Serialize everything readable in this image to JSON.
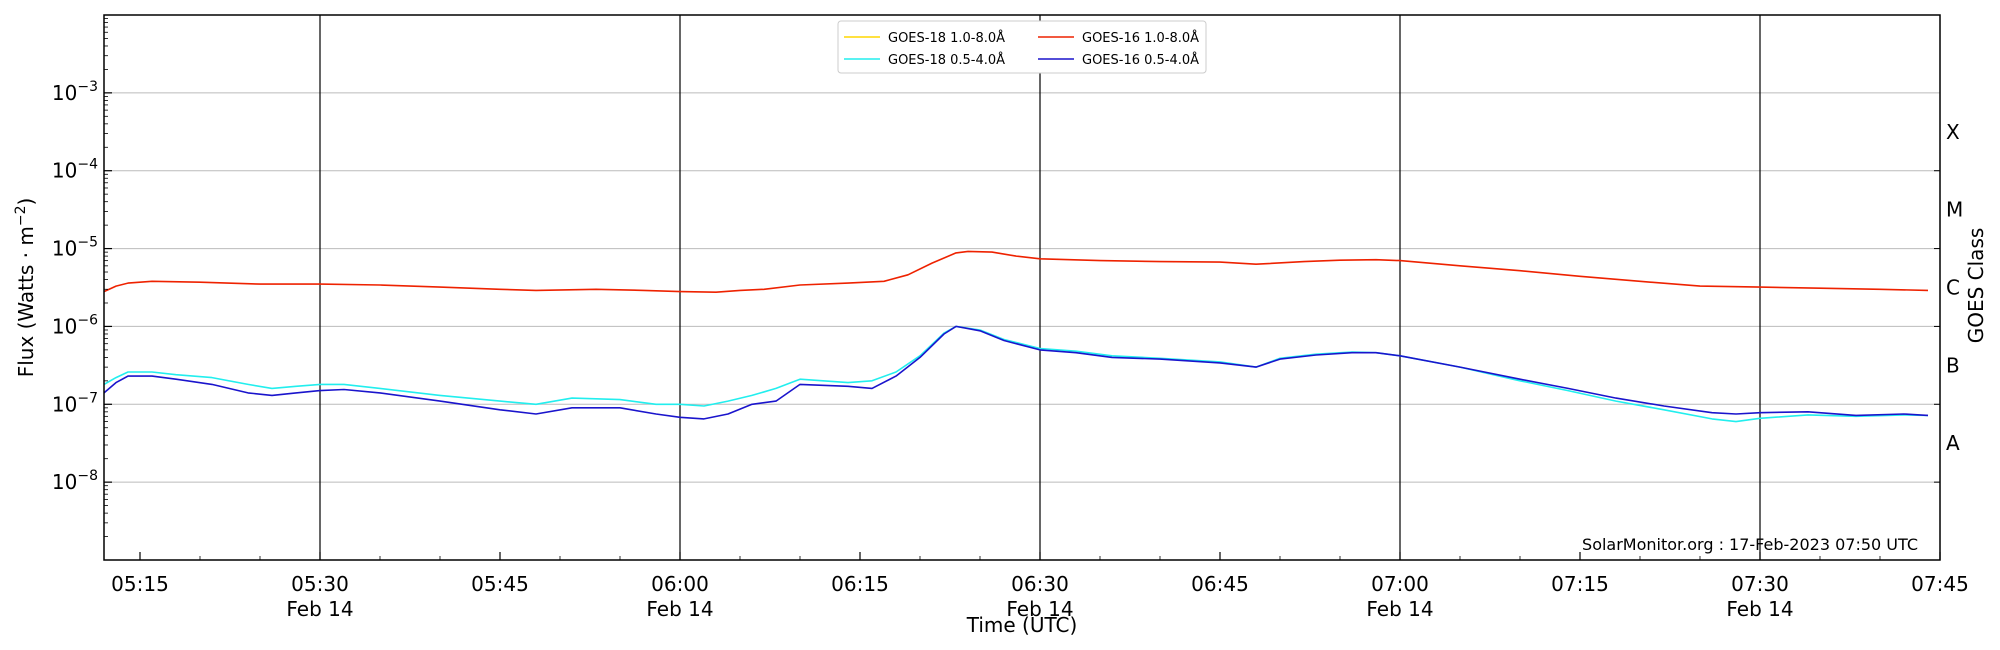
{
  "chart_data": {
    "type": "line",
    "xlabel": "Time (UTC)",
    "ylabel": "Flux (Watts · m",
    "ylabel_sup": "−2",
    "ylabel_close": ")",
    "right_label": "GOES Class",
    "y_scale": "log",
    "ylim": [
      1e-09,
      0.01
    ],
    "xlim": [
      "05:12",
      "07:45"
    ],
    "grid": "horizontal at decades; vertical lines every 30 min",
    "legend_placement": "top-center",
    "y_ticks": [
      {
        "exp": -8,
        "base": "10",
        "pow": "−8"
      },
      {
        "exp": -7,
        "base": "10",
        "pow": "−7"
      },
      {
        "exp": -6,
        "base": "10",
        "pow": "−6"
      },
      {
        "exp": -5,
        "base": "10",
        "pow": "−5"
      },
      {
        "exp": -4,
        "base": "10",
        "pow": "−4"
      },
      {
        "exp": -3,
        "base": "10",
        "pow": "−3"
      }
    ],
    "x_ticks": [
      {
        "t": "05:15",
        "label": "05:15",
        "sub": ""
      },
      {
        "t": "05:30",
        "label": "05:30",
        "sub": "Feb 14"
      },
      {
        "t": "05:45",
        "label": "05:45",
        "sub": ""
      },
      {
        "t": "06:00",
        "label": "06:00",
        "sub": "Feb 14"
      },
      {
        "t": "06:15",
        "label": "06:15",
        "sub": ""
      },
      {
        "t": "06:30",
        "label": "06:30",
        "sub": "Feb 14"
      },
      {
        "t": "06:45",
        "label": "06:45",
        "sub": ""
      },
      {
        "t": "07:00",
        "label": "07:00",
        "sub": "Feb 14"
      },
      {
        "t": "07:15",
        "label": "07:15",
        "sub": ""
      },
      {
        "t": "07:30",
        "label": "07:30",
        "sub": "Feb 14"
      },
      {
        "t": "07:45",
        "label": "07:45",
        "sub": ""
      }
    ],
    "vertical_lines": [
      "05:30",
      "06:00",
      "06:30",
      "07:00",
      "07:30"
    ],
    "goes_classes": [
      {
        "label": "A",
        "exp": -7.5
      },
      {
        "label": "B",
        "exp": -6.5
      },
      {
        "label": "C",
        "exp": -5.5
      },
      {
        "label": "M",
        "exp": -4.5
      },
      {
        "label": "X",
        "exp": -3.5
      }
    ],
    "legend": [
      {
        "name": "GOES-18 1.0-8.0Å",
        "color": "#ffd700"
      },
      {
        "name": "GOES-18 0.5-4.0Å",
        "color": "#22eeee"
      },
      {
        "name": "GOES-16 1.0-8.0Å",
        "color": "#ee2200"
      },
      {
        "name": "GOES-16 0.5-4.0Å",
        "color": "#1a14cc"
      }
    ],
    "series": [
      {
        "name": "GOES-16 1.0-8.0Å",
        "color": "#ee2200",
        "points": [
          [
            "05:12",
            2.8e-06
          ],
          [
            "05:13",
            3.3e-06
          ],
          [
            "05:14",
            3.6e-06
          ],
          [
            "05:16",
            3.8e-06
          ],
          [
            "05:20",
            3.7e-06
          ],
          [
            "05:25",
            3.5e-06
          ],
          [
            "05:30",
            3.5e-06
          ],
          [
            "05:35",
            3.4e-06
          ],
          [
            "05:40",
            3.2e-06
          ],
          [
            "05:45",
            3e-06
          ],
          [
            "05:48",
            2.9e-06
          ],
          [
            "05:53",
            3e-06
          ],
          [
            "05:57",
            2.9e-06
          ],
          [
            "06:00",
            2.8e-06
          ],
          [
            "06:03",
            2.75e-06
          ],
          [
            "06:05",
            2.9e-06
          ],
          [
            "06:07",
            3e-06
          ],
          [
            "06:10",
            3.4e-06
          ],
          [
            "06:14",
            3.6e-06
          ],
          [
            "06:17",
            3.8e-06
          ],
          [
            "06:19",
            4.6e-06
          ],
          [
            "06:21",
            6.5e-06
          ],
          [
            "06:23",
            8.8e-06
          ],
          [
            "06:24",
            9.2e-06
          ],
          [
            "06:26",
            9e-06
          ],
          [
            "06:28",
            8e-06
          ],
          [
            "06:30",
            7.4e-06
          ],
          [
            "06:35",
            7e-06
          ],
          [
            "06:40",
            6.8e-06
          ],
          [
            "06:45",
            6.7e-06
          ],
          [
            "06:48",
            6.3e-06
          ],
          [
            "06:52",
            6.8e-06
          ],
          [
            "06:55",
            7.1e-06
          ],
          [
            "06:58",
            7.2e-06
          ],
          [
            "07:00",
            7e-06
          ],
          [
            "07:05",
            6e-06
          ],
          [
            "07:10",
            5.2e-06
          ],
          [
            "07:15",
            4.4e-06
          ],
          [
            "07:20",
            3.8e-06
          ],
          [
            "07:25",
            3.3e-06
          ],
          [
            "07:30",
            3.2e-06
          ],
          [
            "07:35",
            3.1e-06
          ],
          [
            "07:40",
            3e-06
          ],
          [
            "07:44",
            2.9e-06
          ]
        ]
      },
      {
        "name": "GOES-18 0.5-4.0Å",
        "color": "#22eeee",
        "points": [
          [
            "05:12",
            1.8e-07
          ],
          [
            "05:13",
            2.2e-07
          ],
          [
            "05:14",
            2.6e-07
          ],
          [
            "05:16",
            2.6e-07
          ],
          [
            "05:18",
            2.4e-07
          ],
          [
            "05:21",
            2.2e-07
          ],
          [
            "05:24",
            1.8e-07
          ],
          [
            "05:26",
            1.6e-07
          ],
          [
            "05:28",
            1.7e-07
          ],
          [
            "05:30",
            1.8e-07
          ],
          [
            "05:32",
            1.8e-07
          ],
          [
            "05:35",
            1.6e-07
          ],
          [
            "05:40",
            1.3e-07
          ],
          [
            "05:45",
            1.1e-07
          ],
          [
            "05:48",
            1e-07
          ],
          [
            "05:51",
            1.2e-07
          ],
          [
            "05:55",
            1.15e-07
          ],
          [
            "05:58",
            1e-07
          ],
          [
            "06:00",
            1e-07
          ],
          [
            "06:02",
            9.5e-08
          ],
          [
            "06:04",
            1.1e-07
          ],
          [
            "06:06",
            1.3e-07
          ],
          [
            "06:08",
            1.6e-07
          ],
          [
            "06:10",
            2.1e-07
          ],
          [
            "06:14",
            1.9e-07
          ],
          [
            "06:16",
            2e-07
          ],
          [
            "06:18",
            2.6e-07
          ],
          [
            "06:20",
            4.2e-07
          ],
          [
            "06:22",
            8.2e-07
          ],
          [
            "06:23",
            1e-06
          ],
          [
            "06:25",
            9e-07
          ],
          [
            "06:27",
            6.8e-07
          ],
          [
            "06:30",
            5.2e-07
          ],
          [
            "06:33",
            4.8e-07
          ],
          [
            "06:36",
            4.2e-07
          ],
          [
            "06:40",
            3.9e-07
          ],
          [
            "06:45",
            3.5e-07
          ],
          [
            "06:48",
            3e-07
          ],
          [
            "06:50",
            3.9e-07
          ],
          [
            "06:53",
            4.4e-07
          ],
          [
            "06:56",
            4.7e-07
          ],
          [
            "06:58",
            4.6e-07
          ],
          [
            "07:00",
            4.2e-07
          ],
          [
            "07:05",
            3e-07
          ],
          [
            "07:10",
            2e-07
          ],
          [
            "07:14",
            1.5e-07
          ],
          [
            "07:18",
            1.1e-07
          ],
          [
            "07:22",
            8.5e-08
          ],
          [
            "07:26",
            6.5e-08
          ],
          [
            "07:28",
            6e-08
          ],
          [
            "07:30",
            6.6e-08
          ],
          [
            "07:34",
            7.3e-08
          ],
          [
            "07:38",
            7e-08
          ],
          [
            "07:42",
            7.3e-08
          ],
          [
            "07:44",
            7.2e-08
          ]
        ]
      },
      {
        "name": "GOES-16 0.5-4.0Å",
        "color": "#1a14cc",
        "points": [
          [
            "05:12",
            1.4e-07
          ],
          [
            "05:13",
            1.9e-07
          ],
          [
            "05:14",
            2.3e-07
          ],
          [
            "05:16",
            2.3e-07
          ],
          [
            "05:18",
            2.1e-07
          ],
          [
            "05:21",
            1.8e-07
          ],
          [
            "05:24",
            1.4e-07
          ],
          [
            "05:26",
            1.3e-07
          ],
          [
            "05:28",
            1.4e-07
          ],
          [
            "05:30",
            1.5e-07
          ],
          [
            "05:32",
            1.55e-07
          ],
          [
            "05:35",
            1.4e-07
          ],
          [
            "05:40",
            1.1e-07
          ],
          [
            "05:45",
            8.5e-08
          ],
          [
            "05:48",
            7.5e-08
          ],
          [
            "05:51",
            9e-08
          ],
          [
            "05:55",
            9e-08
          ],
          [
            "05:58",
            7.5e-08
          ],
          [
            "06:00",
            6.8e-08
          ],
          [
            "06:02",
            6.5e-08
          ],
          [
            "06:04",
            7.5e-08
          ],
          [
            "06:06",
            1e-07
          ],
          [
            "06:08",
            1.1e-07
          ],
          [
            "06:10",
            1.8e-07
          ],
          [
            "06:14",
            1.7e-07
          ],
          [
            "06:16",
            1.6e-07
          ],
          [
            "06:18",
            2.3e-07
          ],
          [
            "06:20",
            4e-07
          ],
          [
            "06:22",
            8e-07
          ],
          [
            "06:23",
            1e-06
          ],
          [
            "06:25",
            8.8e-07
          ],
          [
            "06:27",
            6.6e-07
          ],
          [
            "06:30",
            5e-07
          ],
          [
            "06:33",
            4.6e-07
          ],
          [
            "06:36",
            4e-07
          ],
          [
            "06:40",
            3.8e-07
          ],
          [
            "06:45",
            3.4e-07
          ],
          [
            "06:48",
            3e-07
          ],
          [
            "06:50",
            3.8e-07
          ],
          [
            "06:53",
            4.3e-07
          ],
          [
            "06:56",
            4.6e-07
          ],
          [
            "06:58",
            4.6e-07
          ],
          [
            "07:00",
            4.2e-07
          ],
          [
            "07:05",
            3e-07
          ],
          [
            "07:10",
            2.1e-07
          ],
          [
            "07:14",
            1.6e-07
          ],
          [
            "07:18",
            1.2e-07
          ],
          [
            "07:22",
            9.5e-08
          ],
          [
            "07:26",
            7.8e-08
          ],
          [
            "07:28",
            7.5e-08
          ],
          [
            "07:30",
            7.8e-08
          ],
          [
            "07:34",
            8e-08
          ],
          [
            "07:38",
            7.2e-08
          ],
          [
            "07:42",
            7.5e-08
          ],
          [
            "07:44",
            7.2e-08
          ]
        ]
      }
    ]
  },
  "footer": {
    "credit": "SolarMonitor.org : 17-Feb-2023 07:50 UTC"
  }
}
